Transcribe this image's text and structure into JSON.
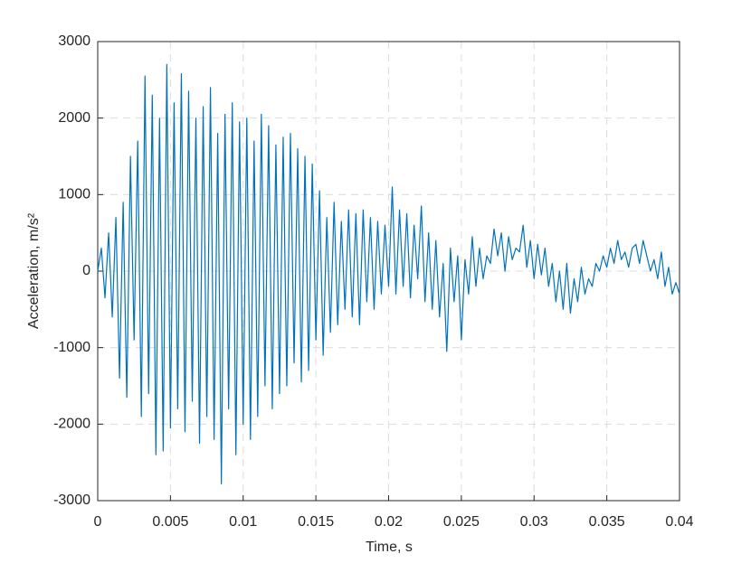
{
  "chart_data": {
    "type": "line",
    "xlabel": "Time, s",
    "ylabel": "Acceleration, m/s²",
    "xlim": [
      0,
      0.04
    ],
    "ylim": [
      -3000,
      3000
    ],
    "xticks": [
      0,
      0.005,
      0.01,
      0.015,
      0.02,
      0.025,
      0.03,
      0.035,
      0.04
    ],
    "yticks": [
      -3000,
      -2000,
      -1000,
      0,
      1000,
      2000,
      3000
    ],
    "grid": true,
    "color": "#0072BD",
    "x": [
      0,
      0.00025,
      0.0005,
      0.00075,
      0.001,
      0.00125,
      0.0015,
      0.00175,
      0.002,
      0.00225,
      0.0025,
      0.00275,
      0.003,
      0.00325,
      0.0035,
      0.00375,
      0.004,
      0.00425,
      0.0045,
      0.00475,
      0.005,
      0.00525,
      0.0055,
      0.00575,
      0.006,
      0.00625,
      0.0065,
      0.00675,
      0.007,
      0.00725,
      0.0075,
      0.00775,
      0.008,
      0.00825,
      0.0085,
      0.00875,
      0.009,
      0.00925,
      0.0095,
      0.00975,
      0.01,
      0.01025,
      0.0105,
      0.01075,
      0.011,
      0.01125,
      0.0115,
      0.01175,
      0.012,
      0.01225,
      0.0125,
      0.01275,
      0.013,
      0.01325,
      0.0135,
      0.01375,
      0.014,
      0.01425,
      0.0145,
      0.01475,
      0.015,
      0.01525,
      0.0155,
      0.01575,
      0.016,
      0.01625,
      0.0165,
      0.01675,
      0.017,
      0.01725,
      0.0175,
      0.01775,
      0.018,
      0.01825,
      0.0185,
      0.01875,
      0.019,
      0.01925,
      0.0195,
      0.01975,
      0.02,
      0.02025,
      0.0205,
      0.02075,
      0.021,
      0.02125,
      0.0215,
      0.02175,
      0.022,
      0.02225,
      0.0225,
      0.02275,
      0.023,
      0.02325,
      0.0235,
      0.02375,
      0.024,
      0.02425,
      0.0245,
      0.02475,
      0.025,
      0.02525,
      0.0255,
      0.02575,
      0.026,
      0.02625,
      0.0265,
      0.02675,
      0.027,
      0.02725,
      0.0275,
      0.02775,
      0.028,
      0.02825,
      0.0285,
      0.02875,
      0.029,
      0.02925,
      0.0295,
      0.02975,
      0.03,
      0.03025,
      0.0305,
      0.03075,
      0.031,
      0.03125,
      0.0315,
      0.03175,
      0.032,
      0.03225,
      0.0325,
      0.03275,
      0.033,
      0.03325,
      0.0335,
      0.03375,
      0.034,
      0.03425,
      0.0345,
      0.03475,
      0.035,
      0.03525,
      0.0355,
      0.03575,
      0.036,
      0.03625,
      0.0365,
      0.03675,
      0.037,
      0.03725,
      0.0375,
      0.03775,
      0.038,
      0.03825,
      0.0385,
      0.03875,
      0.039,
      0.03925,
      0.0395,
      0.03975,
      0.04
    ],
    "values": [
      0,
      300,
      -350,
      500,
      -600,
      700,
      -1400,
      900,
      -1650,
      1500,
      -900,
      1700,
      -1900,
      2550,
      -1600,
      2300,
      -2400,
      2000,
      -2350,
      2700,
      -2050,
      2200,
      -1800,
      2580,
      -2100,
      2350,
      -1700,
      2000,
      -2250,
      2150,
      -1900,
      2400,
      -2200,
      1800,
      -2780,
      2050,
      -1800,
      2200,
      -2400,
      1950,
      -2000,
      2000,
      -2200,
      1700,
      -1900,
      2050,
      -1500,
      1900,
      -1800,
      1650,
      -1600,
      1750,
      -1500,
      1800,
      -1200,
      1600,
      -1450,
      1500,
      -1300,
      1400,
      -900,
      1050,
      -1100,
      700,
      -800,
      900,
      -700,
      650,
      -500,
      800,
      -600,
      750,
      -700,
      800,
      -400,
      700,
      -500,
      650,
      -300,
      600,
      -200,
      1100,
      -300,
      800,
      -200,
      750,
      -350,
      600,
      -100,
      850,
      -400,
      500,
      -500,
      400,
      -600,
      100,
      -1050,
      300,
      -400,
      200,
      -900,
      150,
      -300,
      450,
      -200,
      300,
      -100,
      200,
      100,
      550,
      200,
      500,
      0,
      450,
      150,
      300,
      250,
      600,
      50,
      400,
      -100,
      350,
      -50,
      300,
      -200,
      100,
      -400,
      0,
      -500,
      100,
      -550,
      -100,
      -400,
      50,
      -300,
      -100,
      -200,
      100,
      0,
      200,
      50,
      300,
      100,
      400,
      150,
      250,
      50,
      300,
      350,
      100,
      400,
      200,
      0,
      150,
      -100,
      250,
      -200,
      50,
      -300,
      -150,
      -300
    ]
  }
}
